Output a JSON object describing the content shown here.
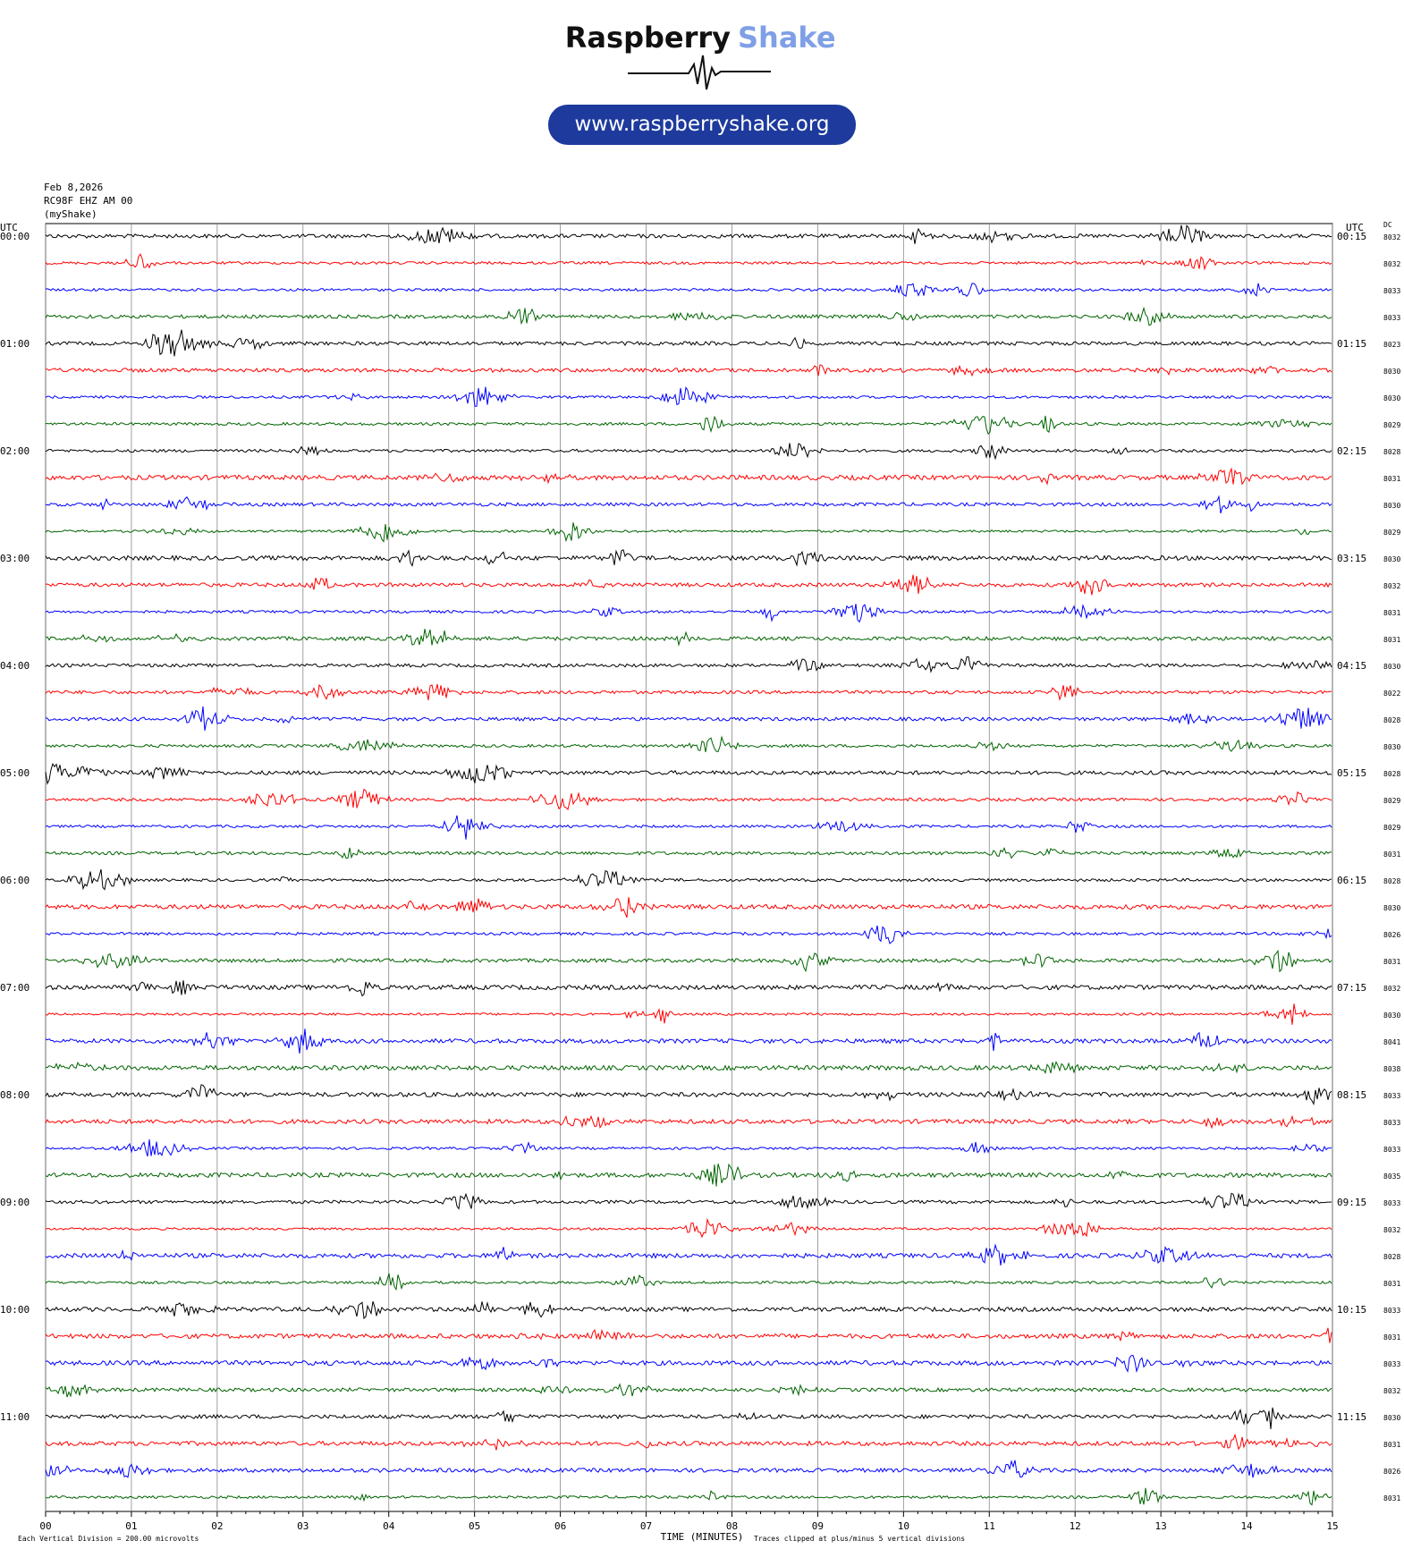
{
  "chart_data": {
    "type": "helicorder",
    "brand_first": "Raspberry",
    "brand_second": "Shake",
    "url": "www.raspberryshake.org",
    "date": "Feb 8,2026",
    "station": "RC98F EHZ AM 00",
    "network": "(myShake)",
    "left_axis_label": "UTC",
    "right_axis_label": "UTC",
    "dc_label": "DC",
    "left_labels": [
      "00:00",
      "01:00",
      "02:00",
      "03:00",
      "04:00",
      "05:00",
      "06:00",
      "07:00",
      "08:00",
      "09:00",
      "10:00",
      "11:00"
    ],
    "right_labels": [
      "00:15",
      "01:15",
      "02:15",
      "03:15",
      "04:15",
      "05:15",
      "06:15",
      "07:15",
      "08:15",
      "09:15",
      "10:15",
      "11:15"
    ],
    "dc_values": [
      8032,
      8032,
      8033,
      8033,
      8023,
      8030,
      8030,
      8029,
      8028,
      8031,
      8030,
      8029,
      8030,
      8032,
      8031,
      8031,
      8030,
      8022,
      8028,
      8030,
      8028,
      8029,
      8029,
      8031,
      8028,
      8030,
      8026,
      8031,
      8032,
      8030,
      8041,
      8038,
      8033,
      8033,
      8033,
      8035,
      8033,
      8032,
      8028,
      8031,
      8033,
      8031,
      8033,
      8032,
      8030,
      8031,
      8026,
      8031
    ],
    "colors": [
      "#000000",
      "#ff0000",
      "#0000ff",
      "#006400"
    ],
    "xlim": [
      0,
      15
    ],
    "xticks": [
      {
        "value": 0,
        "label": "00"
      },
      {
        "value": 1,
        "label": "01"
      },
      {
        "value": 2,
        "label": "02"
      },
      {
        "value": 3,
        "label": "03"
      },
      {
        "value": 4,
        "label": "04"
      },
      {
        "value": 5,
        "label": "05"
      },
      {
        "value": 6,
        "label": "06"
      },
      {
        "value": 7,
        "label": "07"
      },
      {
        "value": 8,
        "label": "08"
      },
      {
        "value": 9,
        "label": "09"
      },
      {
        "value": 10,
        "label": "10"
      },
      {
        "value": 11,
        "label": "11"
      },
      {
        "value": 12,
        "label": "12"
      },
      {
        "value": 13,
        "label": "13"
      },
      {
        "value": 14,
        "label": "14"
      },
      {
        "value": 15,
        "label": "15"
      }
    ],
    "xlabel": "TIME (MINUTES)",
    "footer_left": "Each Vertical Division =  200.00 microvolts",
    "footer_right": "Traces clipped at plus/minus 5 vertical divisions"
  }
}
